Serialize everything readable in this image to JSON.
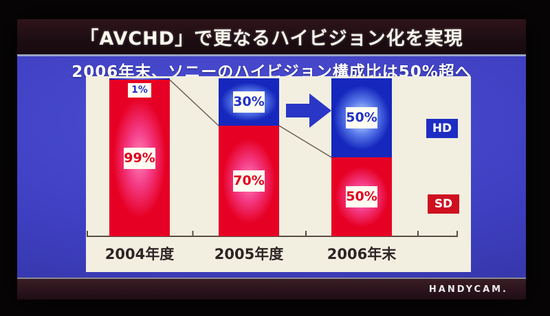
{
  "slide": {
    "title": "「AVCHD」で更なるハイビジョン化を実現",
    "subtitle": "2006年末、ソニーのハイビジョン構成比は50%超へ",
    "brand": "HANDYCAM.",
    "colors": {
      "slide_body_blue": "#3e3fc1",
      "title_band": "#1c0d12",
      "panel_white": "#f2efe1",
      "hd_blue": "#1b2dc2",
      "sd_red": "#e60024",
      "arrow_blue": "#2a36c6"
    }
  },
  "chart_data": {
    "type": "bar",
    "stacked": true,
    "unit": "%",
    "title": "2006年末、ソニーのハイビジョン構成比は50%超へ",
    "categories": [
      "2004年度",
      "2005年度",
      "2006年末"
    ],
    "series": [
      {
        "name": "HD",
        "values": [
          1,
          30,
          50
        ],
        "labels": [
          "1%",
          "30%",
          "50%"
        ],
        "color": "#1b2dc2"
      },
      {
        "name": "SD",
        "values": [
          99,
          70,
          50
        ],
        "labels": [
          "99%",
          "70%",
          "50%"
        ],
        "color": "#e60024"
      }
    ],
    "ylim": [
      0,
      100
    ],
    "grid": false,
    "legend_position": "right",
    "annotations": [
      "blue right arrow between 2005年度 and 2006年末"
    ]
  }
}
